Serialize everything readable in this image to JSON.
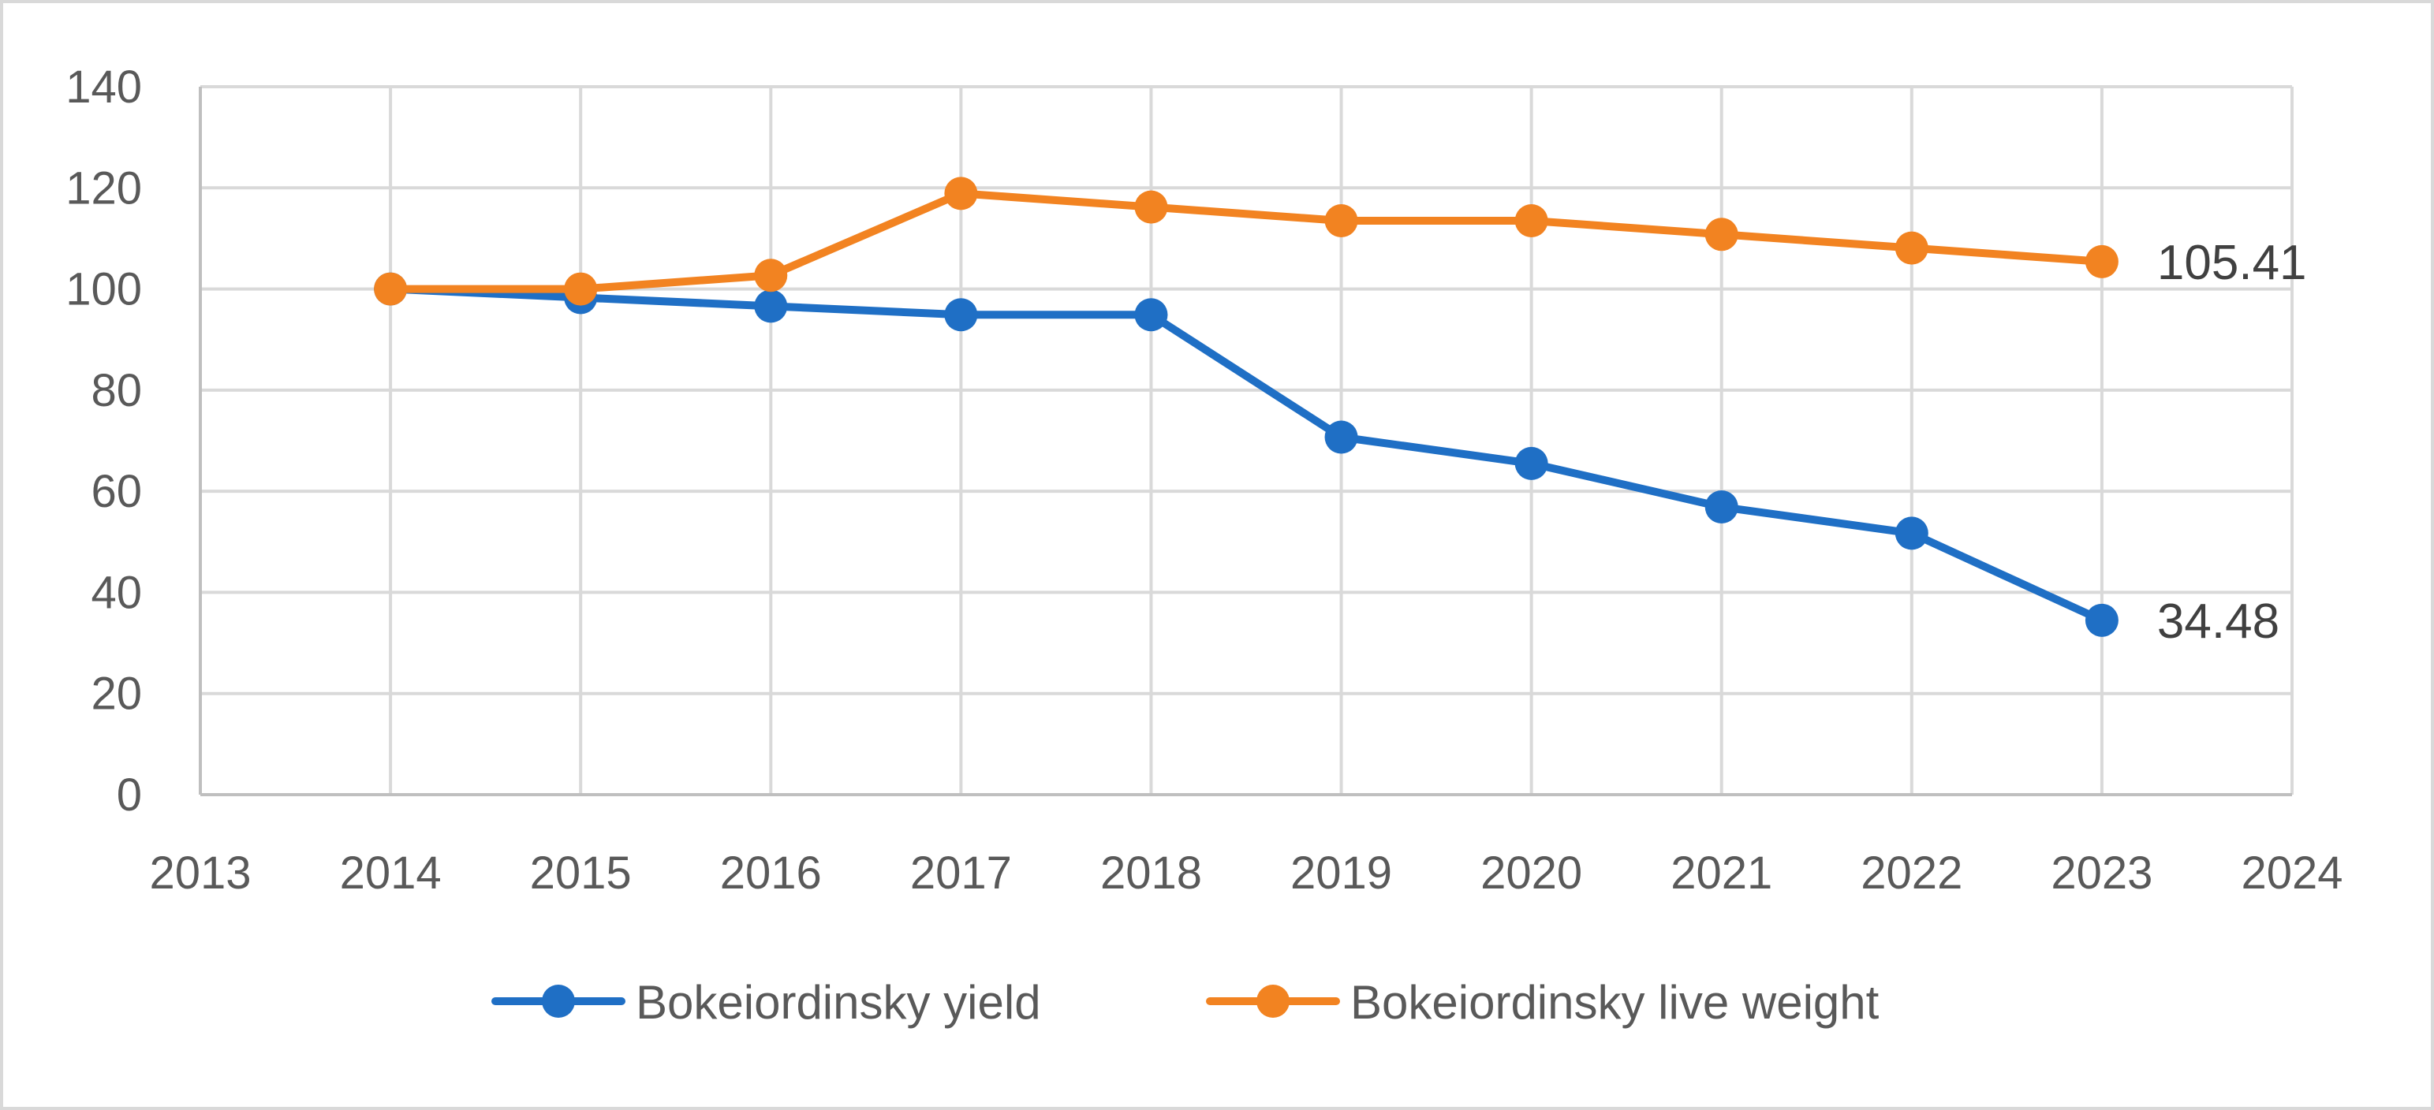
{
  "chart_data": {
    "type": "line",
    "title": "",
    "xlabel": "",
    "ylabel": "",
    "xlim": [
      2013,
      2024
    ],
    "ylim": [
      0,
      140
    ],
    "x_ticks": [
      2013,
      2014,
      2015,
      2016,
      2017,
      2018,
      2019,
      2020,
      2021,
      2022,
      2023,
      2024
    ],
    "y_ticks": [
      0,
      20,
      40,
      60,
      80,
      100,
      120,
      140
    ],
    "grid": true,
    "legend_position": "bottom",
    "x": [
      2014,
      2015,
      2016,
      2017,
      2018,
      2019,
      2020,
      2021,
      2022,
      2023
    ],
    "series": [
      {
        "name": "Bokeiordinsky yield",
        "color": "#1f6fc5",
        "values": [
          100,
          98.3,
          96.6,
          94.9,
          94.9,
          70.7,
          65.5,
          56.9,
          51.7,
          34.48
        ],
        "end_label": "34.48"
      },
      {
        "name": "Bokeiordinsky live weight",
        "color": "#f28321",
        "values": [
          100,
          100,
          102.7,
          118.9,
          116.2,
          113.5,
          113.5,
          110.8,
          108.1,
          105.41
        ],
        "end_label": "105.41"
      }
    ]
  }
}
